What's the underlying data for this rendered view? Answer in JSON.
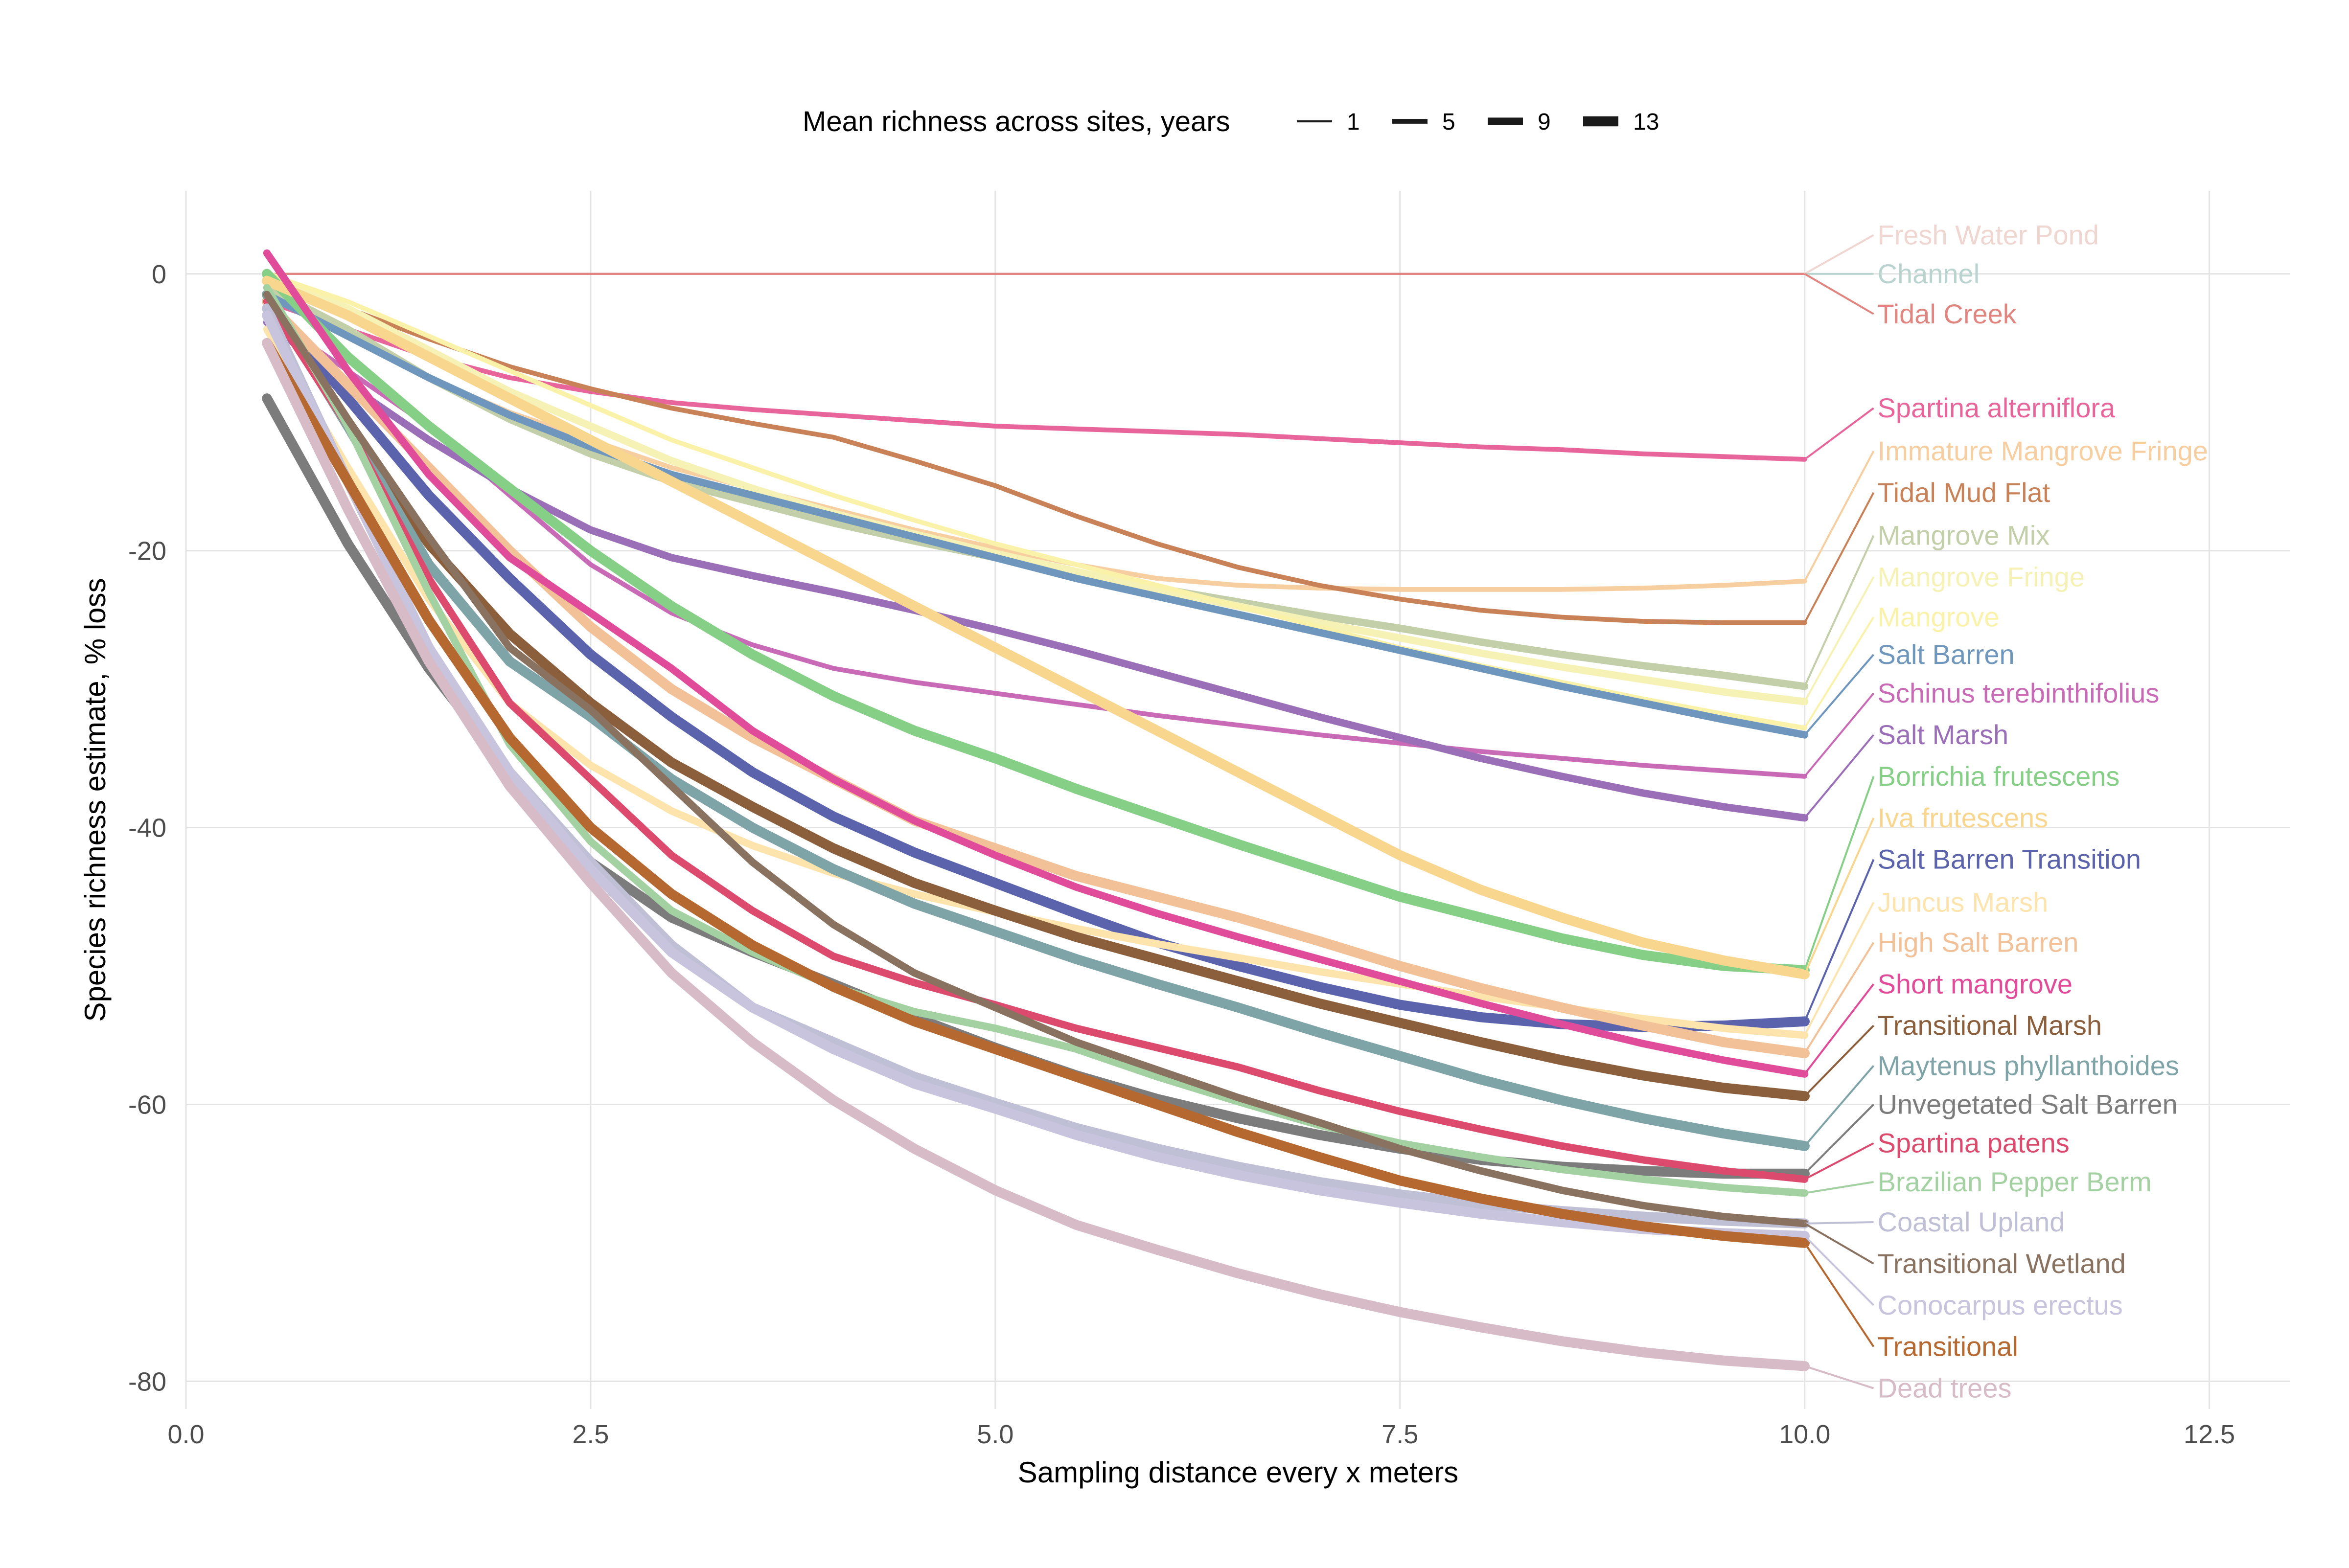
{
  "chart_data": {
    "type": "line",
    "xlabel": "Sampling distance every x meters",
    "ylabel": "Species richness estimate, % loss",
    "xlim": [
      0,
      13
    ],
    "ylim": [
      -82,
      6
    ],
    "x_ticks": [
      0,
      2.5,
      5,
      7.5,
      10,
      12.5
    ],
    "x_tick_labels": [
      "0.0",
      "2.5",
      "5.0",
      "7.5",
      "10.0",
      "12.5"
    ],
    "y_ticks": [
      0,
      -20,
      -40,
      -60,
      -80
    ],
    "y_tick_labels": [
      "0",
      "-20",
      "-40",
      "-60",
      "-80"
    ],
    "grid": true,
    "legend": {
      "title": "Mean richness across sites, years",
      "position": "top",
      "keys": [
        {
          "label": "1",
          "width": 1
        },
        {
          "label": "5",
          "width": 5
        },
        {
          "label": "9",
          "width": 9
        },
        {
          "label": "13",
          "width": 13
        }
      ]
    },
    "x": [
      0.5,
      1,
      1.5,
      2,
      2.5,
      3,
      3.5,
      4,
      4.5,
      5,
      5.5,
      6,
      6.5,
      7,
      7.5,
      8,
      8.5,
      9,
      9.5,
      10
    ],
    "series": [
      {
        "name": "Fresh Water Pond",
        "color": "#f0d6d1",
        "richness": 1,
        "label_y": 2.8,
        "values": [
          0,
          0,
          0,
          0,
          0,
          0,
          0,
          0,
          0,
          0,
          0,
          0,
          0,
          0,
          0,
          0,
          0,
          0,
          0,
          0
        ]
      },
      {
        "name": "Channel",
        "color": "#b9d4cf",
        "richness": 1,
        "label_y": 0,
        "values": [
          0,
          0,
          0,
          0,
          0,
          0,
          0,
          0,
          0,
          0,
          0,
          0,
          0,
          0,
          0,
          0,
          0,
          0,
          0,
          0
        ]
      },
      {
        "name": "Tidal Creek",
        "color": "#e0857f",
        "richness": 1,
        "label_y": -2.9,
        "values": [
          0,
          0,
          0,
          0,
          0,
          0,
          0,
          0,
          0,
          0,
          0,
          0,
          0,
          0,
          0,
          0,
          0,
          0,
          0,
          0
        ]
      },
      {
        "name": "Spartina alterniflora",
        "color": "#e8659b",
        "richness": 5,
        "label_y": -9.7,
        "values": [
          -2,
          -4,
          -6,
          -7.5,
          -8.5,
          -9.3,
          -9.8,
          -10.2,
          -10.6,
          -11,
          -11.2,
          -11.4,
          -11.6,
          -11.9,
          -12.2,
          -12.5,
          -12.7,
          -13,
          -13.2,
          -13.4
        ]
      },
      {
        "name": "Immature Mangrove Fringe",
        "color": "#f7cea0",
        "richness": 5,
        "label_y": -12.8,
        "values": [
          -1.5,
          -4.5,
          -7.5,
          -10,
          -12,
          -14,
          -15.5,
          -17,
          -18.5,
          -19.8,
          -21,
          -22,
          -22.5,
          -22.7,
          -22.8,
          -22.8,
          -22.8,
          -22.7,
          -22.5,
          -22.2
        ]
      },
      {
        "name": "Tidal Mud Flat",
        "color": "#c98258",
        "richness": 5,
        "label_y": -15.8,
        "values": [
          -0.5,
          -2.5,
          -4.7,
          -6.7,
          -8.3,
          -9.7,
          -10.8,
          -11.8,
          -13.5,
          -15.3,
          -17.5,
          -19.5,
          -21.2,
          -22.5,
          -23.5,
          -24.3,
          -24.8,
          -25.1,
          -25.2,
          -25.2
        ]
      },
      {
        "name": "Mangrove Mix",
        "color": "#c2cfa8",
        "richness": 9,
        "label_y": -18.9,
        "values": [
          -1,
          -4,
          -7.5,
          -10.5,
          -13,
          -15,
          -16.5,
          -18,
          -19.3,
          -20.5,
          -21.6,
          -22.7,
          -23.7,
          -24.7,
          -25.6,
          -26.6,
          -27.5,
          -28.3,
          -29,
          -29.8
        ]
      },
      {
        "name": "Mangrove Fringe",
        "color": "#f6f2b5",
        "richness": 9,
        "label_y": -21.9,
        "values": [
          0,
          -2.5,
          -5.5,
          -8.5,
          -11,
          -13.5,
          -15.5,
          -17.3,
          -18.8,
          -20.2,
          -21.5,
          -22.8,
          -24,
          -25.2,
          -26.3,
          -27.4,
          -28.4,
          -29.3,
          -30.2,
          -30.9
        ]
      },
      {
        "name": "Mangrove",
        "color": "#fbf2a9",
        "richness": 5,
        "label_y": -24.8,
        "values": [
          0,
          -2,
          -4.5,
          -7,
          -9.5,
          -12,
          -14,
          -16,
          -17.8,
          -19.5,
          -21,
          -22.5,
          -24,
          -25.5,
          -27,
          -28.3,
          -29.5,
          -30.7,
          -31.8,
          -32.8
        ]
      },
      {
        "name": "Salt Barren",
        "color": "#6f97bd",
        "richness": 9,
        "label_y": -27.5,
        "values": [
          -1.5,
          -4.5,
          -7.5,
          -10.2,
          -12.5,
          -14.5,
          -16,
          -17.5,
          -19,
          -20.5,
          -22,
          -23.3,
          -24.6,
          -25.9,
          -27.2,
          -28.5,
          -29.8,
          -31,
          -32.2,
          -33.3
        ]
      },
      {
        "name": "Schinus terebinthifolius",
        "color": "#c96ab7",
        "richness": 5,
        "label_y": -30.3,
        "values": [
          -3,
          -7,
          -11,
          -16,
          -21,
          -24.5,
          -26.8,
          -28.5,
          -29.5,
          -30.3,
          -31.1,
          -31.9,
          -32.6,
          -33.3,
          -33.9,
          -34.5,
          -35,
          -35.5,
          -35.9,
          -36.3
        ]
      },
      {
        "name": "Salt Marsh",
        "color": "#9a6fb8",
        "richness": 9,
        "label_y": -33.3,
        "values": [
          -3.5,
          -8,
          -12,
          -15.5,
          -18.5,
          -20.5,
          -21.8,
          -23,
          -24.3,
          -25.7,
          -27.2,
          -28.8,
          -30.4,
          -32,
          -33.5,
          -35,
          -36.3,
          -37.5,
          -38.5,
          -39.3
        ]
      },
      {
        "name": "Borrichia frutescens",
        "color": "#86cf87",
        "richness": 13,
        "label_y": -36.3,
        "values": [
          0,
          -6,
          -11,
          -15.5,
          -20,
          -24,
          -27.5,
          -30.5,
          -33,
          -35,
          -37.2,
          -39.2,
          -41.2,
          -43.1,
          -45,
          -46.5,
          -48,
          -49.2,
          -50,
          -50.3
        ]
      },
      {
        "name": "Iva frutescens",
        "color": "#f8d68e",
        "richness": 13,
        "label_y": -39.3,
        "values": [
          -0.5,
          -3,
          -6,
          -9,
          -12,
          -15,
          -18,
          -21,
          -24,
          -27,
          -30,
          -33,
          -36,
          -39,
          -42,
          -44.5,
          -46.5,
          -48.3,
          -49.6,
          -50.6
        ]
      },
      {
        "name": "Salt Barren Transition",
        "color": "#5b63ad",
        "richness": 13,
        "label_y": -42.3,
        "values": [
          -2,
          -9,
          -16,
          -22,
          -27.5,
          -32,
          -36,
          -39.2,
          -41.8,
          -44,
          -46.2,
          -48.3,
          -50,
          -51.5,
          -52.8,
          -53.7,
          -54.2,
          -54.4,
          -54.3,
          -54
        ]
      },
      {
        "name": "Juncus Marsh",
        "color": "#fde4ad",
        "richness": 9,
        "label_y": -45.4,
        "values": [
          -4,
          -14,
          -23.5,
          -31,
          -35.5,
          -38.8,
          -41.3,
          -43.3,
          -44.8,
          -46.1,
          -47.3,
          -48.4,
          -49.4,
          -50.4,
          -51.3,
          -52.2,
          -53,
          -53.8,
          -54.5,
          -55
        ]
      },
      {
        "name": "High Salt Barren",
        "color": "#f2c198",
        "richness": 13,
        "label_y": -48.3,
        "values": [
          -2,
          -8,
          -14,
          -20,
          -25.5,
          -30,
          -33.5,
          -36.5,
          -39.5,
          -41.5,
          -43.5,
          -45,
          -46.5,
          -48.2,
          -50,
          -51.6,
          -53,
          -54.3,
          -55.5,
          -56.3
        ]
      },
      {
        "name": "Short mangrove",
        "color": "#e04c9a",
        "richness": 9,
        "label_y": -51.3,
        "values": [
          1.5,
          -7,
          -14.5,
          -20.5,
          -24.5,
          -28.5,
          -33,
          -36.5,
          -39.5,
          -42,
          -44.3,
          -46.2,
          -47.9,
          -49.5,
          -51.1,
          -52.7,
          -54.2,
          -55.6,
          -56.8,
          -57.8
        ]
      },
      {
        "name": "Transitional Marsh",
        "color": "#8b5e3c",
        "richness": 13,
        "label_y": -54.3,
        "values": [
          -1.5,
          -11,
          -19.5,
          -26,
          -31,
          -35.3,
          -38.5,
          -41.5,
          -44,
          -46,
          -47.9,
          -49.5,
          -51.1,
          -52.7,
          -54.1,
          -55.5,
          -56.8,
          -57.9,
          -58.8,
          -59.4
        ]
      },
      {
        "name": "Maytenus phyllanthoides",
        "color": "#7fa4a8",
        "richness": 13,
        "label_y": -57.2,
        "values": [
          -1.5,
          -11,
          -21,
          -28,
          -32,
          -36.5,
          -40,
          -43,
          -45.5,
          -47.5,
          -49.5,
          -51.3,
          -53,
          -54.8,
          -56.5,
          -58.2,
          -59.7,
          -61,
          -62.1,
          -63
        ]
      },
      {
        "name": "Unvegetated Salt Barren",
        "color": "#7c7c7c",
        "richness": 13,
        "label_y": -60,
        "values": [
          -9,
          -19.5,
          -28.5,
          -36,
          -42.5,
          -46.5,
          -49,
          -51.3,
          -53.7,
          -55.9,
          -57.9,
          -59.6,
          -61,
          -62.2,
          -63.2,
          -64,
          -64.5,
          -64.8,
          -65,
          -65
        ]
      },
      {
        "name": "Spartina patens",
        "color": "#dc4a6e",
        "richness": 9,
        "label_y": -62.8,
        "values": [
          -2,
          -11,
          -22,
          -31,
          -36.5,
          -42,
          -46,
          -49.3,
          -51.2,
          -52.8,
          -54.5,
          -55.9,
          -57.3,
          -59,
          -60.5,
          -61.8,
          -63,
          -64,
          -64.8,
          -65.4
        ]
      },
      {
        "name": "Brazilian Pepper Berm",
        "color": "#a3d1a2",
        "richness": 9,
        "label_y": -65.6,
        "values": [
          -1,
          -11,
          -23,
          -34,
          -41,
          -46,
          -49,
          -51.5,
          -53.3,
          -54.5,
          -56,
          -58,
          -59.8,
          -61.5,
          -62.8,
          -63.8,
          -64.7,
          -65.4,
          -66,
          -66.4
        ]
      },
      {
        "name": "Coastal Upland",
        "color": "#bfbfd6",
        "richness": 13,
        "label_y": -68.5,
        "values": [
          -2.5,
          -15,
          -27,
          -36,
          -42.5,
          -48.5,
          -53,
          -55.5,
          -58,
          -59.9,
          -61.7,
          -63.2,
          -64.5,
          -65.6,
          -66.5,
          -67.2,
          -67.7,
          -68.1,
          -68.4,
          -68.6
        ]
      },
      {
        "name": "Transitional Wetland",
        "color": "#8a7260",
        "richness": 9,
        "label_y": -71.5,
        "values": [
          -1.5,
          -10.5,
          -19,
          -27,
          -31.5,
          -37,
          -42.5,
          -47,
          -50.5,
          -53,
          -55.5,
          -57.5,
          -59.5,
          -61.3,
          -63.2,
          -64.8,
          -66.2,
          -67.3,
          -68.1,
          -68.6
        ]
      },
      {
        "name": "Conocarpus erectus",
        "color": "#c8c4dd",
        "richness": 13,
        "label_y": -74.5,
        "values": [
          -3,
          -15,
          -27,
          -36,
          -43,
          -49,
          -53,
          -56,
          -58.5,
          -60.3,
          -62.2,
          -63.8,
          -65.1,
          -66.2,
          -67.1,
          -67.9,
          -68.5,
          -69,
          -69.3,
          -69.5
        ]
      },
      {
        "name": "Transitional",
        "color": "#b5682f",
        "richness": 13,
        "label_y": -77.5,
        "values": [
          -5,
          -15,
          -25,
          -33.5,
          -40,
          -44.8,
          -48.5,
          -51.5,
          -54,
          -56,
          -58,
          -60,
          -62,
          -63.8,
          -65.5,
          -66.8,
          -67.9,
          -68.8,
          -69.5,
          -70
        ]
      },
      {
        "name": "Dead trees",
        "color": "#d7bcc7",
        "richness": 13,
        "label_y": -80.5,
        "values": [
          -5,
          -17,
          -28,
          -37,
          -44,
          -50.5,
          -55.5,
          -59.7,
          -63.2,
          -66.2,
          -68.7,
          -70.5,
          -72.2,
          -73.7,
          -75,
          -76.1,
          -77.1,
          -77.9,
          -78.5,
          -78.9
        ]
      }
    ]
  }
}
